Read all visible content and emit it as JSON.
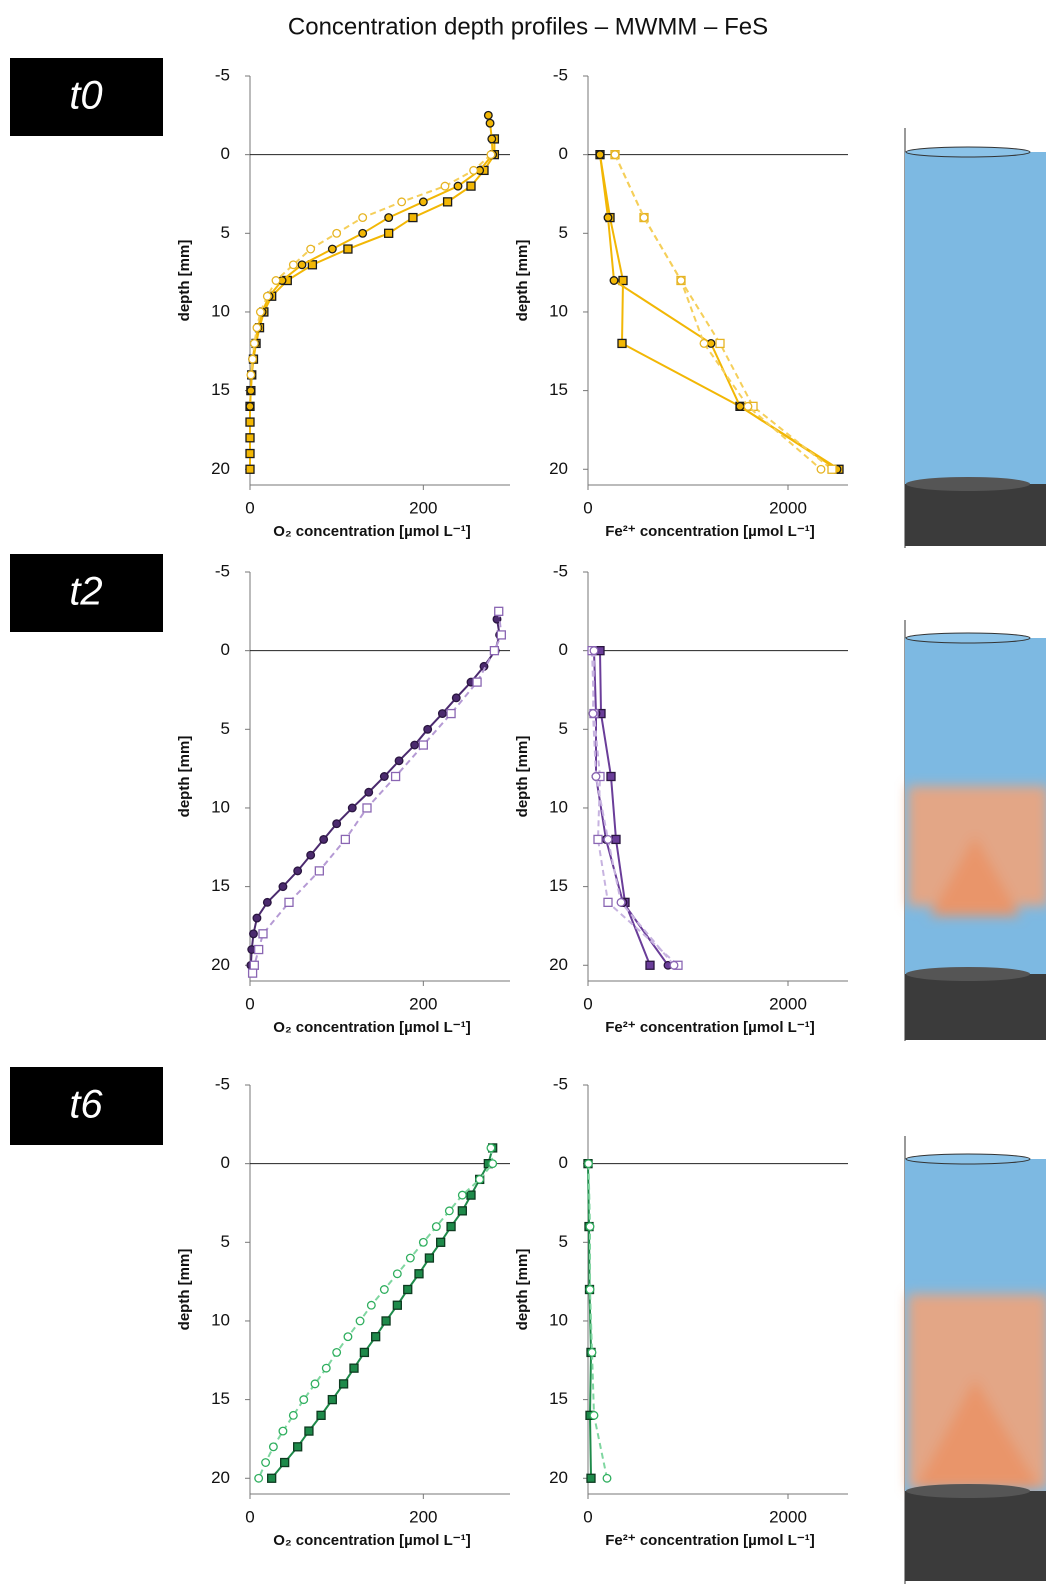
{
  "title": "Concentration depth profiles – MWMM – FeS",
  "rows": [
    {
      "label": "t0"
    },
    {
      "label": "t2"
    },
    {
      "label": "t6"
    }
  ],
  "chart_data": [
    {
      "type": "line",
      "x_label": "O₂ concentration [µmol L⁻¹]",
      "y_label": "depth [mm]",
      "xlim": [
        0,
        300
      ],
      "xticks": [
        0,
        200
      ],
      "ylim": [
        -5,
        21
      ],
      "yticks": [
        -5,
        0,
        5,
        10,
        15,
        20
      ],
      "y_reversed": true,
      "series": [
        {
          "color": "#f2b705",
          "edge": "#1a1a1a",
          "marker": "square",
          "dashed": false,
          "y": [
            -1,
            0,
            1,
            2,
            3,
            4,
            5,
            6,
            7,
            8,
            9,
            10,
            11,
            12,
            13,
            14,
            15,
            16,
            17,
            18,
            19,
            20
          ],
          "x": [
            282,
            282,
            270,
            255,
            228,
            188,
            160,
            113,
            72,
            43,
            25,
            16,
            11,
            7,
            4,
            2,
            1,
            0,
            0,
            0,
            0,
            0
          ]
        },
        {
          "color": "#f2b705",
          "edge": "#1a1a1a",
          "marker": "circle",
          "dashed": false,
          "y": [
            -2.5,
            -2,
            -1,
            0,
            1,
            2,
            3,
            4,
            5,
            6,
            7,
            8,
            9,
            10,
            11,
            12,
            13,
            14,
            15,
            16
          ],
          "x": [
            275,
            277,
            279,
            280,
            265,
            240,
            200,
            160,
            130,
            95,
            60,
            37,
            22,
            14,
            9,
            6,
            3,
            2,
            1,
            0
          ]
        },
        {
          "color": "#f5cf5a",
          "edge": "#e6b422",
          "marker": "circle",
          "dashed": true,
          "y": [
            0,
            1,
            2,
            3,
            4,
            5,
            6,
            7,
            8,
            9,
            10,
            11,
            12,
            13,
            14
          ],
          "x": [
            278,
            258,
            225,
            175,
            130,
            100,
            70,
            50,
            30,
            20,
            12,
            8,
            5,
            3,
            1
          ]
        }
      ]
    },
    {
      "type": "line",
      "x_label": "Fe²⁺ concentration [µmol L⁻¹]",
      "y_label": "depth [mm]",
      "xlim": [
        0,
        2600
      ],
      "xticks": [
        0,
        2000
      ],
      "ylim": [
        -5,
        21
      ],
      "yticks": [
        -5,
        0,
        5,
        10,
        15,
        20
      ],
      "y_reversed": true,
      "series": [
        {
          "color": "#f2b705",
          "edge": "#1a1a1a",
          "marker": "square",
          "dashed": false,
          "y": [
            0,
            4,
            8,
            12,
            16,
            20
          ],
          "x": [
            120,
            220,
            350,
            340,
            1520,
            2510
          ]
        },
        {
          "color": "#f2b705",
          "edge": "#1a1a1a",
          "marker": "circle",
          "dashed": false,
          "y": [
            0,
            4,
            8,
            12,
            16,
            20
          ],
          "x": [
            120,
            200,
            260,
            1230,
            1520,
            2490
          ]
        },
        {
          "color": "#f5cf5a",
          "edge": "#e6b422",
          "marker": "square",
          "dashed": true,
          "y": [
            0,
            4,
            8,
            12,
            16,
            20
          ],
          "x": [
            270,
            560,
            930,
            1320,
            1650,
            2440
          ]
        },
        {
          "color": "#f5cf5a",
          "edge": "#e6b422",
          "marker": "circle",
          "dashed": true,
          "y": [
            0,
            4,
            8,
            12,
            16,
            20
          ],
          "x": [
            270,
            560,
            930,
            1160,
            1600,
            2330
          ]
        }
      ]
    },
    {
      "type": "line",
      "x_label": "O₂ concentration [µmol L⁻¹]",
      "y_label": "depth [mm]",
      "xlim": [
        0,
        300
      ],
      "xticks": [
        0,
        200
      ],
      "ylim": [
        -5,
        21
      ],
      "yticks": [
        -5,
        0,
        5,
        10,
        15,
        20
      ],
      "y_reversed": true,
      "series": [
        {
          "color": "#4b2a6e",
          "edge": "#2a1540",
          "marker": "circle",
          "dashed": false,
          "y": [
            -2,
            -1,
            0,
            1,
            2,
            3,
            4,
            5,
            6,
            7,
            8,
            9,
            10,
            11,
            12,
            13,
            14,
            15,
            16,
            17,
            18,
            19,
            20
          ],
          "x": [
            285,
            288,
            283,
            270,
            255,
            238,
            222,
            205,
            190,
            172,
            155,
            137,
            118,
            100,
            85,
            70,
            55,
            38,
            20,
            8,
            4,
            2,
            1
          ]
        },
        {
          "color": "#b59ad4",
          "edge": "#8a66b3",
          "marker": "square",
          "dashed": true,
          "y": [
            -2.5,
            -1,
            0,
            2,
            4,
            6,
            8,
            10,
            12,
            14,
            16,
            18,
            19,
            20,
            20.5
          ],
          "x": [
            287,
            290,
            282,
            262,
            232,
            200,
            168,
            135,
            110,
            80,
            45,
            15,
            10,
            5,
            3
          ]
        }
      ]
    },
    {
      "type": "line",
      "x_label": "Fe²⁺ concentration [µmol L⁻¹]",
      "y_label": "depth [mm]",
      "xlim": [
        0,
        2600
      ],
      "xticks": [
        0,
        2000
      ],
      "ylim": [
        -5,
        21
      ],
      "yticks": [
        -5,
        0,
        5,
        10,
        15,
        20
      ],
      "y_reversed": true,
      "series": [
        {
          "color": "#6a3d99",
          "edge": "#2a1540",
          "marker": "square",
          "dashed": false,
          "y": [
            0,
            4,
            8,
            12,
            16,
            20
          ],
          "x": [
            120,
            130,
            230,
            280,
            370,
            620
          ]
        },
        {
          "color": "#6a3d99",
          "edge": "#2a1540",
          "marker": "circle",
          "dashed": false,
          "y": [
            0,
            4,
            8,
            12,
            16,
            20
          ],
          "x": [
            60,
            80,
            80,
            180,
            350,
            800
          ]
        },
        {
          "color": "#c7b3e0",
          "edge": "#8a66b3",
          "marker": "square",
          "dashed": true,
          "y": [
            0,
            4,
            8,
            12,
            16,
            20
          ],
          "x": [
            40,
            60,
            120,
            100,
            200,
            900
          ]
        },
        {
          "color": "#c7b3e0",
          "edge": "#8a66b3",
          "marker": "circle",
          "dashed": true,
          "y": [
            0,
            4,
            8,
            12,
            16,
            20
          ],
          "x": [
            60,
            50,
            80,
            200,
            330,
            860
          ]
        }
      ]
    },
    {
      "type": "line",
      "x_label": "O₂ concentration [µmol L⁻¹]",
      "y_label": "depth [mm]",
      "xlim": [
        0,
        300
      ],
      "xticks": [
        0,
        200
      ],
      "ylim": [
        -5,
        21
      ],
      "yticks": [
        -5,
        0,
        5,
        10,
        15,
        20
      ],
      "y_reversed": true,
      "series": [
        {
          "color": "#1e8a4a",
          "edge": "#0d3b20",
          "marker": "square",
          "dashed": false,
          "y": [
            -1,
            0,
            1,
            2,
            3,
            4,
            5,
            6,
            7,
            8,
            9,
            10,
            11,
            12,
            13,
            14,
            15,
            16,
            17,
            18,
            19,
            20
          ],
          "x": [
            280,
            275,
            265,
            255,
            245,
            232,
            220,
            207,
            195,
            182,
            170,
            157,
            145,
            132,
            120,
            108,
            95,
            82,
            68,
            55,
            40,
            25
          ]
        },
        {
          "color": "#7fd6a0",
          "edge": "#2fae5e",
          "marker": "circle",
          "dashed": true,
          "y": [
            -1,
            0,
            1,
            2,
            3,
            4,
            5,
            6,
            7,
            8,
            9,
            10,
            11,
            12,
            13,
            14,
            15,
            16,
            17,
            18,
            19,
            20
          ],
          "x": [
            278,
            280,
            265,
            245,
            230,
            215,
            200,
            185,
            170,
            155,
            140,
            127,
            113,
            100,
            88,
            75,
            62,
            50,
            38,
            27,
            18,
            10
          ]
        }
      ]
    },
    {
      "type": "line",
      "x_label": "Fe²⁺ concentration [µmol L⁻¹]",
      "y_label": "depth [mm]",
      "xlim": [
        0,
        2600
      ],
      "xticks": [
        0,
        2000
      ],
      "ylim": [
        -5,
        21
      ],
      "yticks": [
        -5,
        0,
        5,
        10,
        15,
        20
      ],
      "y_reversed": true,
      "series": [
        {
          "color": "#1e8a4a",
          "edge": "#0d3b20",
          "marker": "square",
          "dashed": false,
          "y": [
            0,
            4,
            8,
            12,
            16,
            20
          ],
          "x": [
            0,
            10,
            15,
            30,
            20,
            30
          ]
        },
        {
          "color": "#7fd6a0",
          "edge": "#2fae5e",
          "marker": "circle",
          "dashed": true,
          "y": [
            0,
            4,
            8,
            12,
            16,
            20
          ],
          "x": [
            5,
            20,
            20,
            40,
            60,
            190
          ]
        }
      ]
    }
  ]
}
